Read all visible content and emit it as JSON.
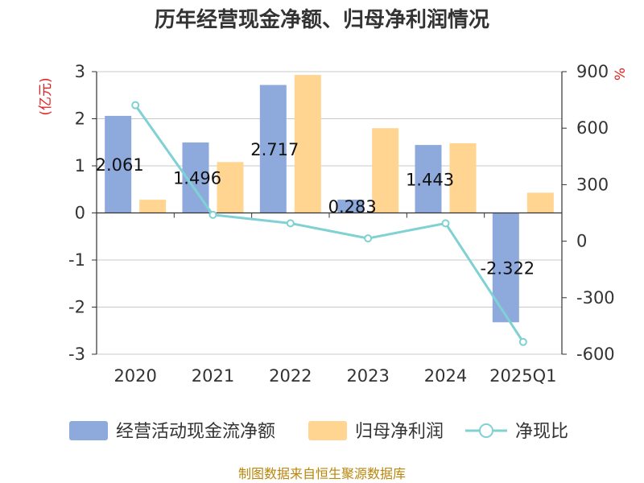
{
  "chart_data": {
    "type": "bar",
    "title": "历年经营现金净额、归母净利润情况",
    "categories": [
      "2020",
      "2021",
      "2022",
      "2023",
      "2024",
      "2025Q1"
    ],
    "y_left": {
      "unit": "(亿元)",
      "ylim": [
        -3,
        3
      ],
      "ticks": [
        3,
        2,
        1,
        0,
        -1,
        -2,
        -3
      ]
    },
    "y_right": {
      "unit": "%",
      "ylim": [
        -600,
        900
      ],
      "ticks": [
        900,
        600,
        300,
        0,
        -300,
        -600
      ]
    },
    "series": [
      {
        "name": "经营活动现金流净额",
        "kind": "bar",
        "axis": "left",
        "color": "#8eaadc",
        "values": [
          2.061,
          1.496,
          2.717,
          0.283,
          1.443,
          -2.322
        ],
        "labels": [
          "2.061",
          "1.496",
          "2.717",
          "0.283",
          "1.443",
          "-2.322"
        ]
      },
      {
        "name": "归母净利润",
        "kind": "bar",
        "axis": "left",
        "color": "#ffd591",
        "values": [
          0.28,
          1.08,
          2.93,
          1.8,
          1.48,
          0.43
        ]
      },
      {
        "name": "净现比",
        "kind": "line",
        "axis": "right",
        "color": "#7fd1d3",
        "values": [
          722,
          140,
          95,
          15,
          95,
          -535
        ]
      }
    ],
    "grid": true,
    "legend_position": "bottom"
  },
  "source": "制图数据来自恒生聚源数据库"
}
